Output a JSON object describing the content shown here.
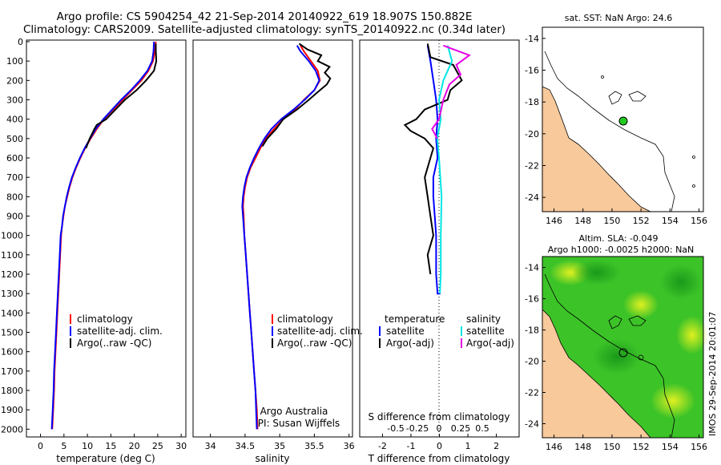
{
  "header": {
    "line1": "Argo profile: CS 5904254_42 21-Sep-2014 20140922_619 18.907S 150.882E",
    "line2": "Climatology: CARS2009. Satellite-adjusted climatology: synTS_20140922.nc (0.34d later)"
  },
  "colors": {
    "climatology": "#ff0000",
    "satellite": "#0000ff",
    "argo": "#000000",
    "sal_satellite": "#00e5e5",
    "sal_argo": "#e500e5",
    "land": "#f7c99b",
    "sea_base": "#33cc22"
  },
  "y_axis": {
    "ticks": [
      "0",
      "100",
      "200",
      "300",
      "400",
      "500",
      "600",
      "700",
      "800",
      "900",
      "1000",
      "1100",
      "1200",
      "1300",
      "1400",
      "1500",
      "1600",
      "1700",
      "1800",
      "1900",
      "2000"
    ]
  },
  "temperature_panel": {
    "xlabel": "temperature (deg C)",
    "xticks": [
      "0",
      "5",
      "10",
      "15",
      "20",
      "25",
      "30"
    ],
    "legend": [
      "climatology",
      "satellite-adj. clim.",
      "Argo(..raw -QC)"
    ]
  },
  "salinity_panel": {
    "xlabel": "salinity",
    "xticks": [
      "34",
      "34.5",
      "35",
      "35.5",
      "36"
    ],
    "legend": [
      "climatology",
      "satellite-adj. clim.",
      "Argo(..raw -QC)"
    ],
    "credit1": "Argo Australia",
    "credit2": "PI: Susan Wijffels"
  },
  "difference_panel": {
    "top_label": "S difference from climatology",
    "top_ticks": [
      "-0.5",
      "-0.25",
      "0",
      "0.25",
      "0.5"
    ],
    "xlabel": "T difference from climatology",
    "xticks": [
      "-2",
      "-1",
      "0",
      "1",
      "2"
    ],
    "legend_head_t": "temperature",
    "legend_head_s": "salinity",
    "legend_t": [
      "satellite",
      "Argo(-adj)"
    ],
    "legend_s": [
      "satellite",
      "Argo(-adj)"
    ]
  },
  "map_sst": {
    "title": "sat. SST: NaN Argo: 24.6",
    "yticks": [
      "-14",
      "-16",
      "-18",
      "-20",
      "-22",
      "-24"
    ],
    "xticks": [
      "146",
      "148",
      "150",
      "152",
      "154",
      "156"
    ]
  },
  "map_sla": {
    "title1": "Altim. SLA: -0.049",
    "title2": "Argo h1000: -0.0025 h2000: NaN",
    "yticks": [
      "-14",
      "-16",
      "-18",
      "-20",
      "-22",
      "-24"
    ],
    "xticks": [
      "146",
      "148",
      "150",
      "152",
      "154",
      "156"
    ],
    "side_note": "IMOS 29-Sep-2014 20:01:07"
  },
  "chart_data": [
    {
      "type": "line",
      "panel": "temperature",
      "xlabel": "temperature (deg C)",
      "xlim": [
        -3,
        31
      ],
      "ylim": [
        2000,
        0
      ],
      "series": [
        {
          "name": "climatology",
          "points": [
            [
              24.6,
              0
            ],
            [
              24.4,
              50
            ],
            [
              24.0,
              100
            ],
            [
              23.0,
              150
            ],
            [
              21.5,
              200
            ],
            [
              19.5,
              250
            ],
            [
              17.5,
              300
            ],
            [
              15.5,
              350
            ],
            [
              13.5,
              400
            ],
            [
              12.0,
              450
            ],
            [
              10.7,
              500
            ],
            [
              9.5,
              550
            ],
            [
              8.5,
              600
            ],
            [
              7.6,
              650
            ],
            [
              6.8,
              700
            ],
            [
              6.2,
              750
            ],
            [
              5.7,
              800
            ],
            [
              5.2,
              850
            ],
            [
              4.9,
              900
            ],
            [
              4.6,
              950
            ],
            [
              4.4,
              1000
            ],
            [
              4.2,
              1100
            ],
            [
              4.0,
              1200
            ],
            [
              3.8,
              1300
            ],
            [
              3.6,
              1400
            ],
            [
              3.4,
              1500
            ],
            [
              3.2,
              1600
            ],
            [
              3.0,
              1700
            ],
            [
              2.9,
              1800
            ],
            [
              2.7,
              1900
            ],
            [
              2.5,
              2000
            ]
          ]
        },
        {
          "name": "satellite-adj. clim.",
          "points": [
            [
              24.2,
              0
            ],
            [
              24.1,
              50
            ],
            [
              23.8,
              100
            ],
            [
              22.8,
              150
            ],
            [
              21.2,
              200
            ],
            [
              19.3,
              250
            ],
            [
              17.2,
              300
            ],
            [
              15.3,
              350
            ],
            [
              13.4,
              400
            ],
            [
              11.8,
              450
            ],
            [
              10.6,
              500
            ],
            [
              9.4,
              550
            ],
            [
              8.4,
              600
            ],
            [
              7.5,
              650
            ],
            [
              6.7,
              700
            ],
            [
              6.1,
              750
            ],
            [
              5.6,
              800
            ],
            [
              5.2,
              850
            ],
            [
              4.8,
              900
            ],
            [
              4.6,
              950
            ],
            [
              4.3,
              1000
            ],
            [
              4.1,
              1100
            ],
            [
              3.9,
              1200
            ],
            [
              3.7,
              1300
            ],
            [
              3.5,
              1400
            ],
            [
              3.3,
              1500
            ],
            [
              3.1,
              1600
            ],
            [
              2.9,
              1700
            ],
            [
              2.8,
              1800
            ],
            [
              2.6,
              1900
            ],
            [
              2.4,
              2000
            ]
          ]
        },
        {
          "name": "Argo(..raw -QC)",
          "points": [
            [
              24.6,
              10
            ],
            [
              24.6,
              50
            ],
            [
              24.7,
              100
            ],
            [
              24.2,
              150
            ],
            [
              22.5,
              200
            ],
            [
              20.5,
              250
            ],
            [
              18.0,
              300
            ],
            [
              16.0,
              350
            ],
            [
              14.0,
              400
            ],
            [
              12.0,
              430
            ],
            [
              11.5,
              450
            ],
            [
              10.5,
              500
            ],
            [
              9.7,
              550
            ]
          ]
        }
      ]
    },
    {
      "type": "line",
      "panel": "salinity",
      "xlabel": "salinity",
      "xlim": [
        33.75,
        36.05
      ],
      "ylim": [
        2000,
        0
      ],
      "series": [
        {
          "name": "climatology",
          "points": [
            [
              35.3,
              20
            ],
            [
              35.35,
              50
            ],
            [
              35.45,
              100
            ],
            [
              35.55,
              150
            ],
            [
              35.58,
              200
            ],
            [
              35.5,
              250
            ],
            [
              35.35,
              300
            ],
            [
              35.22,
              350
            ],
            [
              35.05,
              400
            ],
            [
              34.92,
              450
            ],
            [
              34.8,
              500
            ],
            [
              34.72,
              550
            ],
            [
              34.65,
              600
            ],
            [
              34.58,
              650
            ],
            [
              34.53,
              700
            ],
            [
              34.5,
              750
            ],
            [
              34.48,
              800
            ],
            [
              34.47,
              850
            ],
            [
              34.48,
              900
            ],
            [
              34.49,
              1000
            ],
            [
              34.51,
              1100
            ],
            [
              34.53,
              1200
            ],
            [
              34.55,
              1300
            ],
            [
              34.57,
              1400
            ],
            [
              34.59,
              1500
            ],
            [
              34.61,
              1600
            ],
            [
              34.63,
              1700
            ],
            [
              34.65,
              1800
            ],
            [
              34.67,
              1900
            ],
            [
              34.68,
              2000
            ]
          ]
        },
        {
          "name": "satellite-adj. clim.",
          "points": [
            [
              35.25,
              20
            ],
            [
              35.3,
              50
            ],
            [
              35.42,
              100
            ],
            [
              35.52,
              150
            ],
            [
              35.57,
              200
            ],
            [
              35.5,
              250
            ],
            [
              35.36,
              300
            ],
            [
              35.2,
              350
            ],
            [
              35.02,
              400
            ],
            [
              34.88,
              450
            ],
            [
              34.78,
              500
            ],
            [
              34.7,
              550
            ],
            [
              34.63,
              600
            ],
            [
              34.57,
              650
            ],
            [
              34.52,
              700
            ],
            [
              34.49,
              750
            ],
            [
              34.47,
              800
            ],
            [
              34.46,
              850
            ],
            [
              34.47,
              900
            ],
            [
              34.49,
              1000
            ],
            [
              34.51,
              1100
            ],
            [
              34.53,
              1200
            ],
            [
              34.55,
              1300
            ],
            [
              34.57,
              1400
            ],
            [
              34.59,
              1500
            ],
            [
              34.61,
              1600
            ],
            [
              34.63,
              1700
            ],
            [
              34.65,
              1800
            ],
            [
              34.66,
              1900
            ],
            [
              34.67,
              2000
            ]
          ]
        },
        {
          "name": "Argo(..raw -QC)",
          "points": [
            [
              35.28,
              10
            ],
            [
              35.4,
              40
            ],
            [
              35.6,
              70
            ],
            [
              35.55,
              100
            ],
            [
              35.72,
              130
            ],
            [
              35.65,
              160
            ],
            [
              35.73,
              190
            ],
            [
              35.68,
              220
            ],
            [
              35.55,
              260
            ],
            [
              35.42,
              300
            ],
            [
              35.25,
              350
            ],
            [
              35.05,
              400
            ],
            [
              34.95,
              450
            ],
            [
              34.82,
              500
            ],
            [
              34.75,
              540
            ]
          ]
        }
      ]
    },
    {
      "type": "line",
      "panel": "difference",
      "xlabel": "T difference from climatology",
      "xlim": [
        -2.8,
        2.8
      ],
      "ylim": [
        2000,
        0
      ],
      "series": [
        {
          "name": "satellite",
          "group": "temperature",
          "points": [
            [
              -0.4,
              20
            ],
            [
              -0.3,
              100
            ],
            [
              -0.2,
              200
            ],
            [
              -0.1,
              300
            ],
            [
              -0.05,
              400
            ],
            [
              -0.1,
              500
            ],
            [
              -0.05,
              600
            ],
            [
              -0.2,
              700
            ],
            [
              -0.2,
              800
            ],
            [
              -0.15,
              900
            ],
            [
              -0.1,
              1000
            ],
            [
              -0.1,
              1100
            ],
            [
              -0.1,
              1200
            ],
            [
              -0.05,
              1300
            ],
            [
              0.05,
              1300
            ]
          ]
        },
        {
          "name": "Argo(-adj)",
          "group": "temperature",
          "points": [
            [
              -0.4,
              10
            ],
            [
              -0.3,
              80
            ],
            [
              0.5,
              120
            ],
            [
              0.8,
              200
            ],
            [
              0.4,
              250
            ],
            [
              0.3,
              300
            ],
            [
              -0.5,
              350
            ],
            [
              -0.8,
              400
            ],
            [
              -1.2,
              430
            ],
            [
              -1.0,
              460
            ],
            [
              -0.5,
              500
            ],
            [
              -0.2,
              550
            ],
            [
              -0.3,
              600
            ],
            [
              -0.5,
              700
            ],
            [
              -0.4,
              800
            ],
            [
              -0.3,
              900
            ],
            [
              -0.2,
              1000
            ],
            [
              -0.4,
              1100
            ],
            [
              -0.3,
              1200
            ]
          ]
        },
        {
          "name": "satellite",
          "group": "salinity",
          "points": [
            [
              0.1,
              20
            ],
            [
              0.15,
              100
            ],
            [
              0.05,
              200
            ],
            [
              0.0,
              300
            ],
            [
              0.02,
              400
            ],
            [
              -0.02,
              500
            ],
            [
              0.0,
              600
            ],
            [
              0.03,
              800
            ],
            [
              0.02,
              1000
            ],
            [
              0.02,
              1200
            ],
            [
              0.01,
              1300
            ]
          ]
        },
        {
          "name": "Argo(-adj)",
          "group": "salinity",
          "points": [
            [
              0.05,
              20
            ],
            [
              0.35,
              70
            ],
            [
              0.2,
              120
            ],
            [
              0.25,
              170
            ],
            [
              0.12,
              220
            ],
            [
              0.05,
              300
            ],
            [
              0.0,
              400
            ],
            [
              -0.08,
              450
            ],
            [
              -0.02,
              500
            ]
          ]
        }
      ]
    }
  ]
}
